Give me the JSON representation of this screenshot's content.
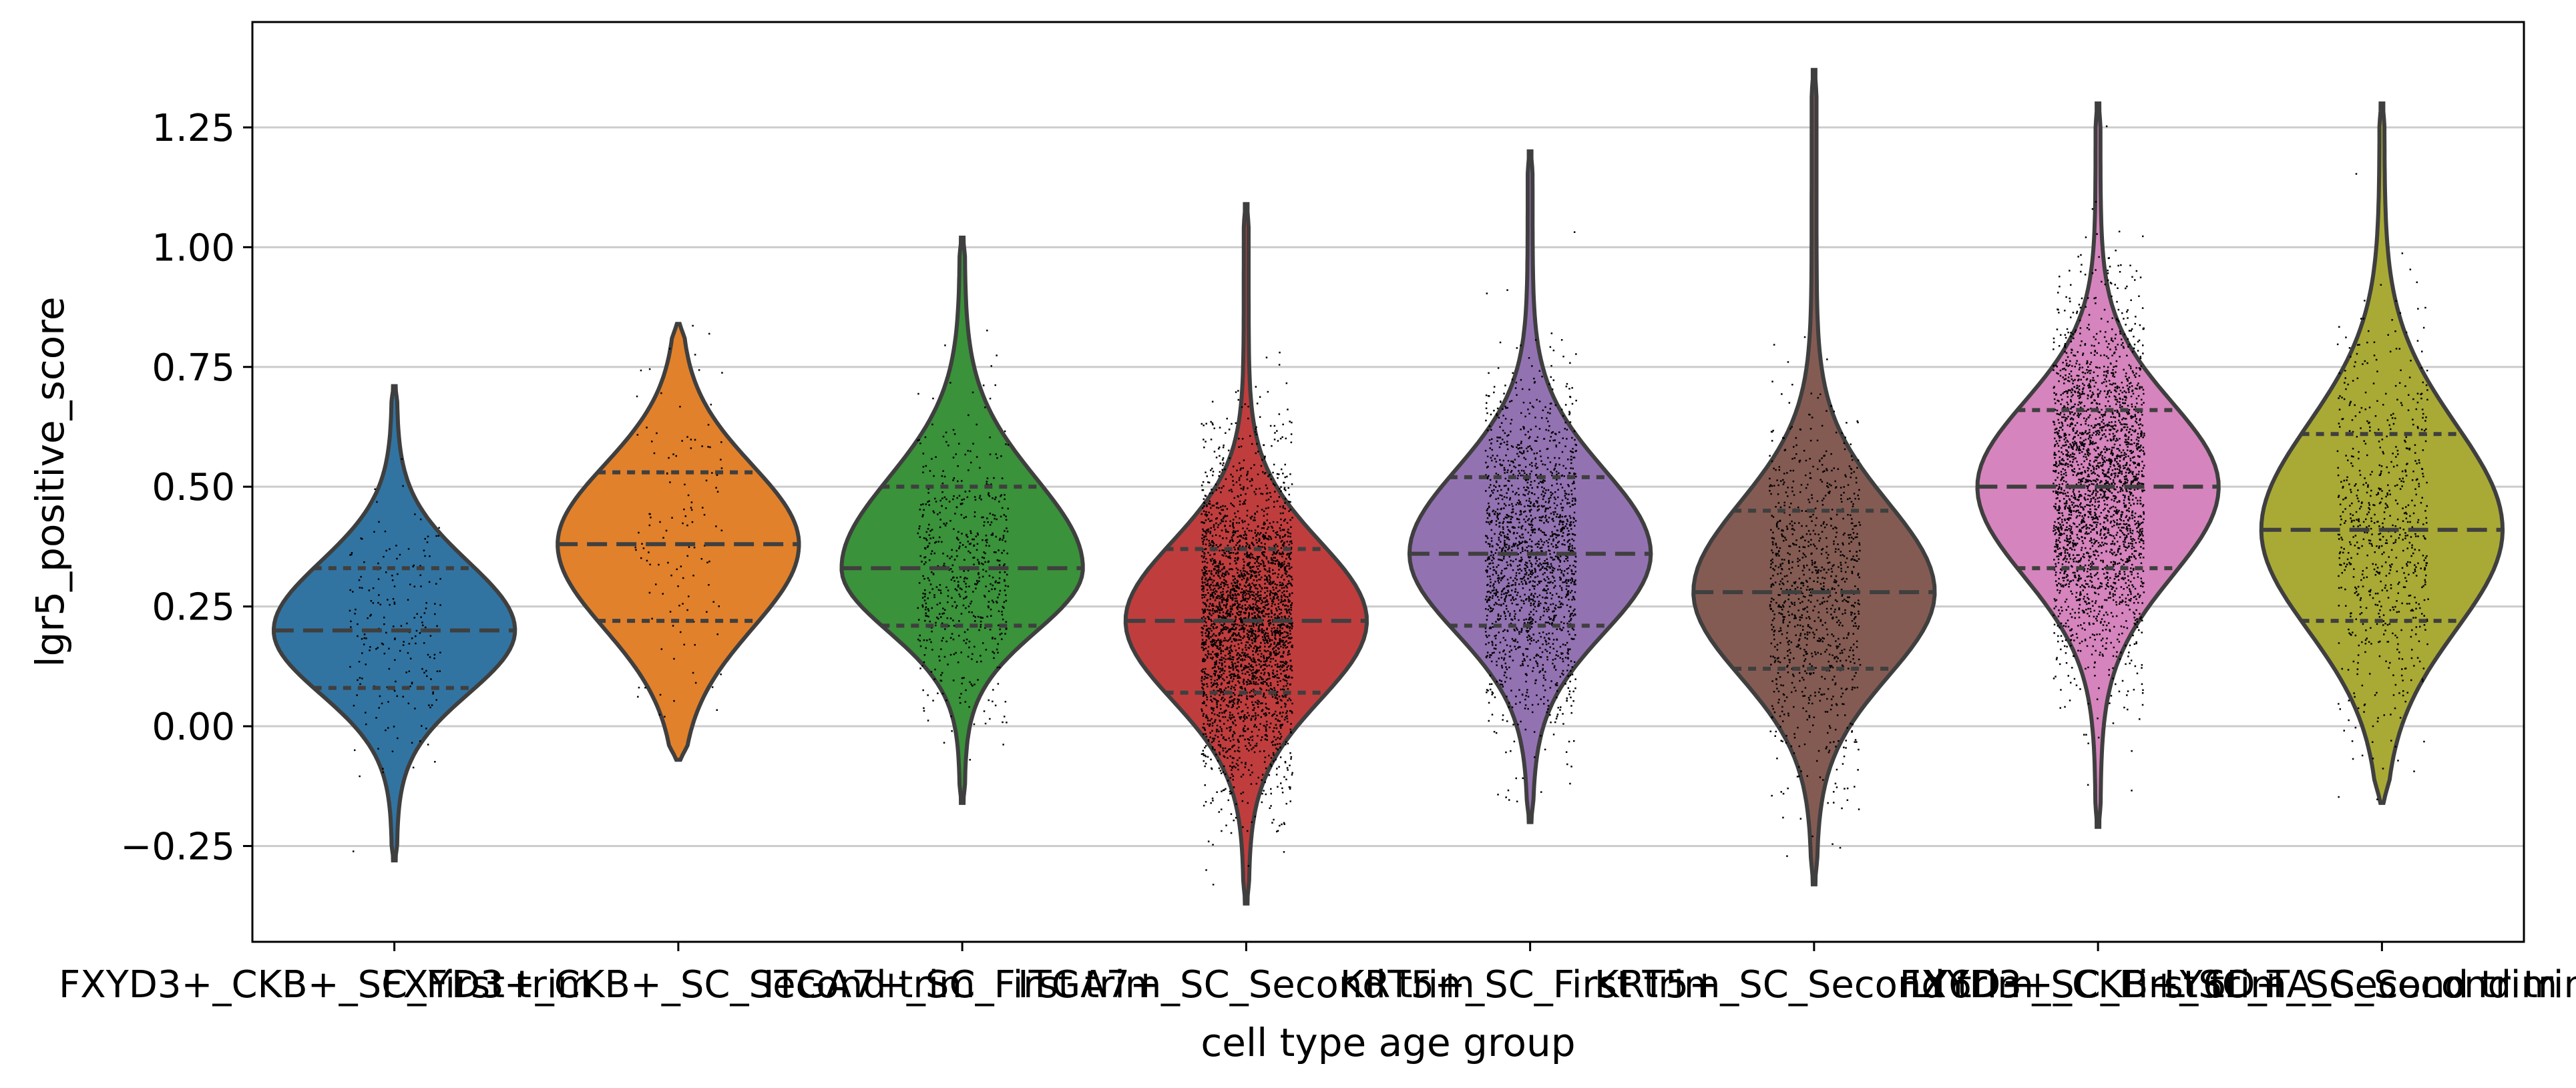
{
  "chart_data": {
    "type": "violin",
    "xlabel": "cell type age group",
    "ylabel": "lgr5_positive_score",
    "ylim": [
      -0.45,
      1.47
    ],
    "yticks": [
      -0.25,
      0.0,
      0.25,
      0.5,
      0.75,
      1.0,
      1.25
    ],
    "ytick_labels": [
      "−0.25",
      "0.00",
      "0.25",
      "0.50",
      "0.75",
      "1.00",
      "1.25"
    ],
    "grid": "horizontal",
    "categories": [
      "FXYD3+_CKB+_SC_First trim",
      "FXYD3+_CKB+_SC_Second trim",
      "ITGA7+_SC_First trim",
      "ITGA7+_SC_Second trim",
      "KRT5+_SC_First trim",
      "KRT5+_SC_Second trim",
      "LY6D+_SC_First trim",
      "LY6D+_SC_Second trim",
      "FXYD3+_CKB+_SC_TA_Second trim"
    ],
    "series": [
      {
        "color": "#3274a1",
        "min": -0.28,
        "max": 0.71,
        "q1": 0.08,
        "median": 0.2,
        "q3": 0.33,
        "points": 200
      },
      {
        "color": "#e1812c",
        "min": -0.07,
        "max": 0.84,
        "q1": 0.22,
        "median": 0.38,
        "q3": 0.53,
        "points": 120
      },
      {
        "color": "#3a923a",
        "min": -0.16,
        "max": 1.02,
        "q1": 0.21,
        "median": 0.33,
        "q3": 0.5,
        "points": 600
      },
      {
        "color": "#c03d3e",
        "min": -0.37,
        "max": 1.09,
        "q1": 0.07,
        "median": 0.22,
        "q3": 0.37,
        "points": 3000
      },
      {
        "color": "#9372b2",
        "min": -0.2,
        "max": 1.2,
        "q1": 0.21,
        "median": 0.36,
        "q3": 0.52,
        "points": 1800
      },
      {
        "color": "#845b53",
        "min": -0.33,
        "max": 1.37,
        "q1": 0.12,
        "median": 0.28,
        "q3": 0.45,
        "points": 1000
      },
      {
        "color": "#d684bd",
        "min": -0.21,
        "max": 1.3,
        "q1": 0.33,
        "median": 0.5,
        "q3": 0.66,
        "points": 2600
      },
      {
        "color": "#a9aa35",
        "min": -0.16,
        "max": 1.3,
        "q1": 0.22,
        "median": 0.41,
        "q3": 0.61,
        "points": 700
      }
    ]
  }
}
